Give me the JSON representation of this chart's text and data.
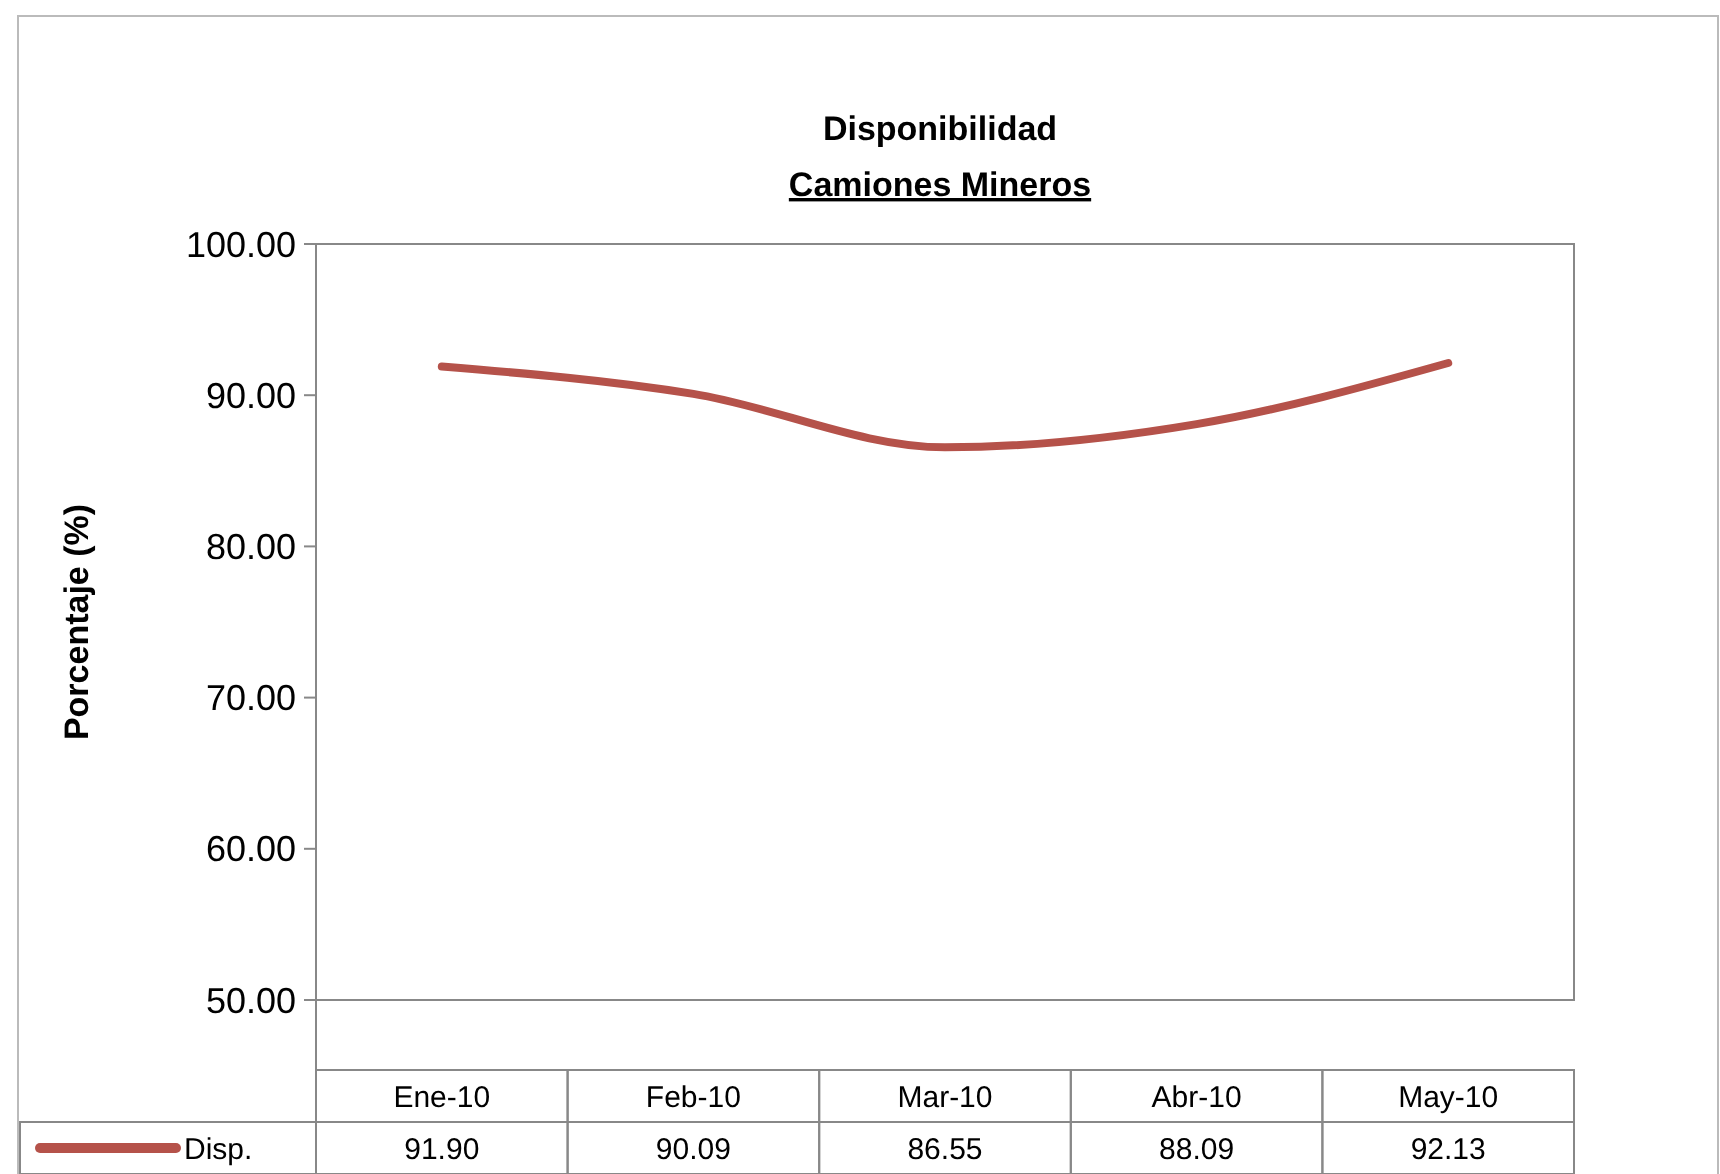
{
  "chart_data": {
    "type": "line",
    "title": "Disponibilidad",
    "subtitle": "Camiones Mineros",
    "ylabel": "Porcentaje (%)",
    "categories": [
      "Ene-10",
      "Feb-10",
      "Mar-10",
      "Abr-10",
      "May-10"
    ],
    "series": [
      {
        "name": "Disp.",
        "color": "#b5524a",
        "values": [
          91.9,
          90.09,
          86.55,
          88.09,
          92.13
        ],
        "value_labels": [
          "91.90",
          "90.09",
          "86.55",
          "88.09",
          "92.13"
        ]
      }
    ],
    "ylim": [
      50,
      100
    ],
    "yticks": [
      {
        "value": 50,
        "label": "50.00"
      },
      {
        "value": 60,
        "label": "60.00"
      },
      {
        "value": 70,
        "label": "70.00"
      },
      {
        "value": 80,
        "label": "80.00"
      },
      {
        "value": 90,
        "label": "90.00"
      },
      {
        "value": 100,
        "label": "100.00"
      }
    ],
    "legend": "bottom",
    "grid": false,
    "marker": "none",
    "line_style": "solid"
  }
}
